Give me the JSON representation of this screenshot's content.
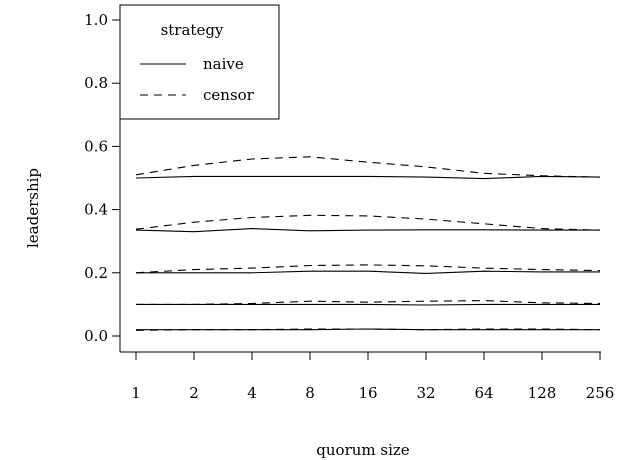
{
  "chart_data": {
    "type": "line",
    "xlabel": "quorum size",
    "ylabel": "leadership",
    "x": [
      "1",
      "2",
      "4",
      "8",
      "16",
      "32",
      "64",
      "128",
      "256"
    ],
    "y_ticks": [
      "0.0",
      "0.2",
      "0.4",
      "0.6",
      "0.8",
      "1.0"
    ],
    "ylim": [
      0,
      1
    ],
    "grid": false,
    "legend": {
      "title": "strategy",
      "position": "top-left",
      "entries": [
        {
          "label": "naive",
          "style": "solid"
        },
        {
          "label": "censor",
          "style": "dashed"
        }
      ]
    },
    "series": [
      {
        "group": 1,
        "strategy": "naive",
        "values": [
          0.5,
          0.505,
          0.505,
          0.505,
          0.505,
          0.503,
          0.498,
          0.505,
          0.503
        ]
      },
      {
        "group": 1,
        "strategy": "censor",
        "values": [
          0.51,
          0.54,
          0.56,
          0.567,
          0.55,
          0.535,
          0.515,
          0.507,
          0.503
        ]
      },
      {
        "group": 2,
        "strategy": "naive",
        "values": [
          0.335,
          0.33,
          0.34,
          0.333,
          0.335,
          0.336,
          0.336,
          0.335,
          0.335
        ]
      },
      {
        "group": 2,
        "strategy": "censor",
        "values": [
          0.338,
          0.36,
          0.375,
          0.382,
          0.38,
          0.37,
          0.355,
          0.34,
          0.335
        ]
      },
      {
        "group": 3,
        "strategy": "naive",
        "values": [
          0.2,
          0.2,
          0.2,
          0.205,
          0.205,
          0.198,
          0.205,
          0.203,
          0.203
        ]
      },
      {
        "group": 3,
        "strategy": "censor",
        "values": [
          0.2,
          0.21,
          0.215,
          0.223,
          0.225,
          0.222,
          0.215,
          0.21,
          0.207
        ]
      },
      {
        "group": 4,
        "strategy": "naive",
        "values": [
          0.1,
          0.1,
          0.1,
          0.1,
          0.1,
          0.098,
          0.1,
          0.1,
          0.1
        ]
      },
      {
        "group": 4,
        "strategy": "censor",
        "values": [
          0.1,
          0.1,
          0.103,
          0.11,
          0.107,
          0.11,
          0.112,
          0.105,
          0.103
        ]
      },
      {
        "group": 5,
        "strategy": "naive",
        "values": [
          0.02,
          0.02,
          0.02,
          0.02,
          0.022,
          0.02,
          0.02,
          0.02,
          0.02
        ]
      },
      {
        "group": 5,
        "strategy": "censor",
        "values": [
          0.018,
          0.02,
          0.02,
          0.022,
          0.022,
          0.02,
          0.022,
          0.022,
          0.02
        ]
      }
    ]
  }
}
